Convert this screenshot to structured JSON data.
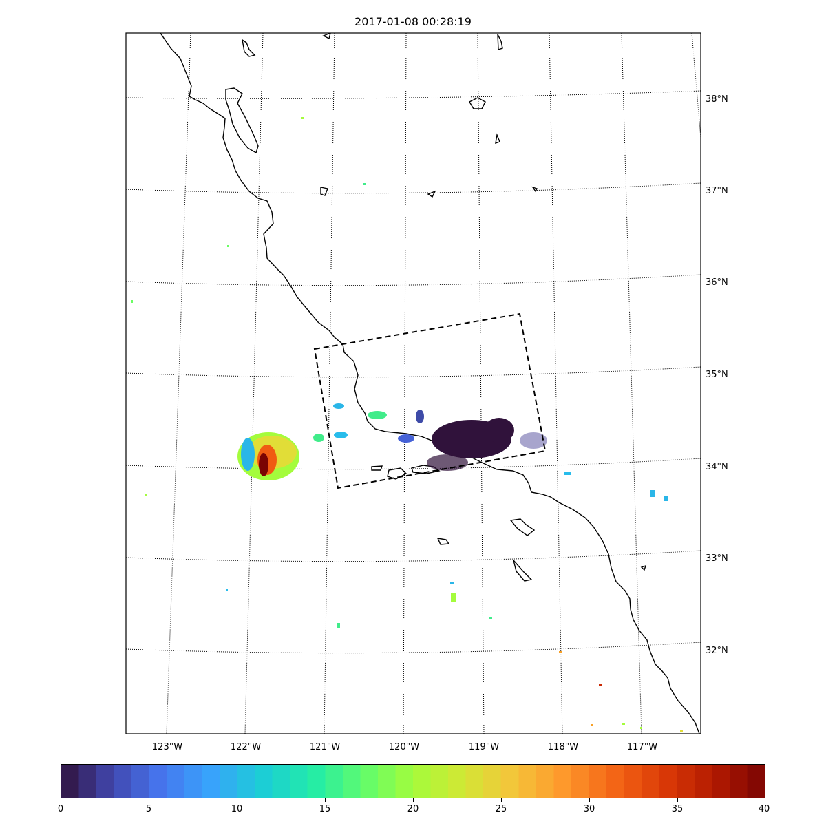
{
  "title": "2017-01-08 00:28:19",
  "map": {
    "lon_ticks": [
      "123°W",
      "122°W",
      "121°W",
      "120°W",
      "119°W",
      "118°W",
      "117°W"
    ],
    "lat_ticks": [
      "38°N",
      "37°N",
      "36°N",
      "35°N",
      "34°N",
      "33°N",
      "32°N"
    ],
    "graticule_style": "dotted",
    "swath_box_style": "dashed"
  },
  "colorbar": {
    "colormap": "turbo",
    "min": 0,
    "max": 40,
    "levels": 40,
    "tick_labels": [
      "0",
      "5",
      "10",
      "15",
      "20",
      "25",
      "30",
      "35",
      "40"
    ]
  },
  "colors": {
    "coastline": "#000000",
    "frame": "#000000",
    "graticule": "#000000",
    "background": "#ffffff"
  }
}
